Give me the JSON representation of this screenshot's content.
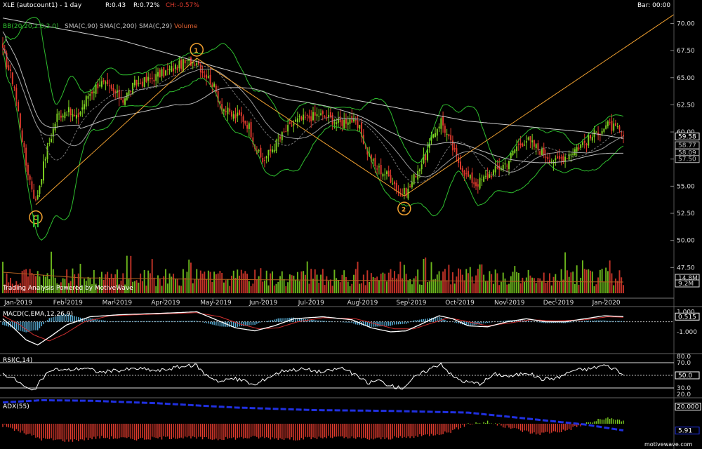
{
  "header": {
    "symbol": "XLE (autocount1) - 1 day",
    "range_label": "R:0.43",
    "range_pct": "R:0.72%",
    "change": "CH:-0.57%",
    "bar_label": "Bar: 00:00"
  },
  "indicators_line": {
    "bb": "BB(20,20,2.0,2.0)",
    "sma90": "SMA(C,90)",
    "sma200": "SMA(C,200)",
    "sma29": "SMA(C,29)",
    "volume": "Volume"
  },
  "watermark": "Trading Analysis Powered by MotiveWave",
  "footer_brand": "motivewave.com",
  "colors": {
    "up": "#7ed321",
    "down": "#e23b2e",
    "bb": "#2fbf2f",
    "sma": "#bdbdbd",
    "wave": "#f0a030",
    "macd": "#ffffff",
    "signal": "#d03030",
    "hist": "#5ab0d8",
    "adx": "#2030e0"
  },
  "chart_data": [
    {
      "type": "candlestick",
      "title": "XLE (autocount1) - 1 day",
      "x_labels": [
        "Jan-2019",
        "Feb-2019",
        "Mar-2019",
        "Apr-2019",
        "May-2019",
        "Jun-2019",
        "Jul-2019",
        "Aug-2019",
        "Sep-2019",
        "Oct-2019",
        "Nov-2019",
        "Dec-2019",
        "Jan-2020"
      ],
      "y_ticks": [
        "70.00",
        "67.50",
        "65.00",
        "62.50",
        "60.00",
        "57.50",
        "55.00",
        "52.50",
        "50.00",
        "47.50"
      ],
      "ylim": [
        45,
        71
      ],
      "price_tags": [
        {
          "label": "59.58",
          "value": 59.58,
          "color": "#ffffff"
        },
        {
          "label": "58.77",
          "value": 58.77,
          "color": "#bdbdbd"
        },
        {
          "label": "58.09",
          "value": 58.09,
          "color": "#bdbdbd"
        },
        {
          "label": "57.50",
          "value": 57.5,
          "color": "#bdbdbd"
        }
      ],
      "close_anchors": [
        [
          0,
          67.4
        ],
        [
          6,
          64.2
        ],
        [
          12,
          57.0
        ],
        [
          17,
          53.5
        ],
        [
          22,
          57.8
        ],
        [
          28,
          61.5
        ],
        [
          33,
          62.0
        ],
        [
          38,
          61.2
        ],
        [
          44,
          63.4
        ],
        [
          50,
          64.6
        ],
        [
          56,
          63.8
        ],
        [
          62,
          63.0
        ],
        [
          68,
          64.4
        ],
        [
          74,
          64.7
        ],
        [
          80,
          65.2
        ],
        [
          86,
          65.7
        ],
        [
          93,
          66.3
        ],
        [
          100,
          66.6
        ],
        [
          103,
          65.6
        ],
        [
          108,
          64.5
        ],
        [
          113,
          62.3
        ],
        [
          118,
          61.5
        ],
        [
          123,
          61.4
        ],
        [
          127,
          60.5
        ],
        [
          131,
          58.2
        ],
        [
          134,
          57.3
        ],
        [
          139,
          58.5
        ],
        [
          145,
          59.9
        ],
        [
          151,
          61.0
        ],
        [
          157,
          61.3
        ],
        [
          163,
          61.6
        ],
        [
          169,
          61.2
        ],
        [
          174,
          60.8
        ],
        [
          179,
          61.3
        ],
        [
          184,
          60.2
        ],
        [
          188,
          58.2
        ],
        [
          192,
          56.8
        ],
        [
          197,
          56.2
        ],
        [
          201,
          55.6
        ],
        [
          205,
          54.2
        ],
        [
          209,
          54.6
        ],
        [
          213,
          56.2
        ],
        [
          218,
          57.8
        ],
        [
          222,
          59.8
        ],
        [
          226,
          61.1
        ],
        [
          230,
          59.3
        ],
        [
          234,
          57.6
        ],
        [
          239,
          56.0
        ],
        [
          244,
          55.2
        ],
        [
          249,
          55.8
        ],
        [
          255,
          56.6
        ],
        [
          260,
          57.2
        ],
        [
          265,
          58.7
        ],
        [
          270,
          59.3
        ],
        [
          275,
          58.6
        ],
        [
          280,
          57.9
        ],
        [
          285,
          57.2
        ],
        [
          291,
          57.9
        ],
        [
          297,
          58.7
        ],
        [
          302,
          59.3
        ],
        [
          307,
          60.1
        ],
        [
          312,
          60.6
        ],
        [
          316,
          60.3
        ],
        [
          320,
          59.58
        ]
      ],
      "waves": [
        {
          "label": "C",
          "idx": 17,
          "value": 53.3
        },
        {
          "label": "1",
          "idx": 100,
          "value": 66.8
        },
        {
          "label": "2",
          "idx": 207,
          "value": 54.1
        }
      ],
      "wave_lines": [
        [
          17,
          53.3
        ],
        [
          100,
          66.8
        ],
        [
          207,
          54.1
        ],
        [
          360,
          72.5
        ]
      ],
      "volume_tags": [
        "14.8M",
        "9.2M"
      ]
    },
    {
      "type": "line",
      "title": "MACD(C,EMA,12,26,9)",
      "y_ticks": [
        "1.000",
        "-1.000"
      ],
      "value_tag": "0.515",
      "ylim": [
        -2.6,
        1.3
      ],
      "macd_anchors": [
        [
          0,
          0.3
        ],
        [
          5,
          -0.5
        ],
        [
          12,
          -1.8
        ],
        [
          18,
          -2.3
        ],
        [
          25,
          -1.4
        ],
        [
          33,
          -0.3
        ],
        [
          45,
          0.5
        ],
        [
          60,
          0.7
        ],
        [
          75,
          0.8
        ],
        [
          90,
          0.9
        ],
        [
          100,
          1.0
        ],
        [
          110,
          0.2
        ],
        [
          120,
          -0.6
        ],
        [
          130,
          -0.9
        ],
        [
          140,
          -0.4
        ],
        [
          150,
          0.3
        ],
        [
          165,
          0.5
        ],
        [
          180,
          0.2
        ],
        [
          190,
          -0.6
        ],
        [
          200,
          -1.0
        ],
        [
          208,
          -0.9
        ],
        [
          215,
          -0.3
        ],
        [
          225,
          0.6
        ],
        [
          232,
          0.3
        ],
        [
          240,
          -0.4
        ],
        [
          250,
          -0.5
        ],
        [
          260,
          0.0
        ],
        [
          270,
          0.3
        ],
        [
          280,
          0.0
        ],
        [
          290,
          0.0
        ],
        [
          300,
          0.3
        ],
        [
          310,
          0.6
        ],
        [
          320,
          0.515
        ]
      ],
      "signal_anchors": [
        [
          0,
          0.6
        ],
        [
          8,
          -0.2
        ],
        [
          16,
          -1.3
        ],
        [
          24,
          -1.9
        ],
        [
          32,
          -1.2
        ],
        [
          42,
          0.0
        ],
        [
          55,
          0.6
        ],
        [
          70,
          0.7
        ],
        [
          85,
          0.8
        ],
        [
          100,
          0.9
        ],
        [
          112,
          0.5
        ],
        [
          122,
          -0.2
        ],
        [
          132,
          -0.7
        ],
        [
          142,
          -0.6
        ],
        [
          152,
          0.0
        ],
        [
          165,
          0.4
        ],
        [
          182,
          0.3
        ],
        [
          192,
          -0.2
        ],
        [
          202,
          -0.7
        ],
        [
          212,
          -0.7
        ],
        [
          220,
          -0.2
        ],
        [
          230,
          0.4
        ],
        [
          240,
          0.0
        ],
        [
          250,
          -0.4
        ],
        [
          262,
          -0.1
        ],
        [
          272,
          0.2
        ],
        [
          285,
          0.1
        ],
        [
          300,
          0.2
        ],
        [
          312,
          0.5
        ],
        [
          320,
          0.45
        ]
      ]
    },
    {
      "type": "line",
      "title": "RSI(C,14)",
      "y_ticks": [
        "80.0",
        "70.0",
        "50.0",
        "30.0",
        "20.0"
      ],
      "value_tag": "50.0",
      "ylim": [
        20,
        80
      ],
      "levels": [
        70,
        50,
        30
      ],
      "rsi_anchors": [
        [
          0,
          52
        ],
        [
          4,
          48
        ],
        [
          8,
          40
        ],
        [
          12,
          30
        ],
        [
          16,
          25
        ],
        [
          20,
          44
        ],
        [
          26,
          60
        ],
        [
          33,
          58
        ],
        [
          42,
          62
        ],
        [
          50,
          55
        ],
        [
          60,
          58
        ],
        [
          70,
          61
        ],
        [
          80,
          57
        ],
        [
          90,
          63
        ],
        [
          100,
          66
        ],
        [
          104,
          52
        ],
        [
          112,
          40
        ],
        [
          118,
          45
        ],
        [
          124,
          42
        ],
        [
          130,
          34
        ],
        [
          136,
          46
        ],
        [
          145,
          58
        ],
        [
          155,
          60
        ],
        [
          165,
          55
        ],
        [
          175,
          62
        ],
        [
          182,
          50
        ],
        [
          188,
          38
        ],
        [
          194,
          42
        ],
        [
          200,
          33
        ],
        [
          206,
          30
        ],
        [
          212,
          46
        ],
        [
          220,
          60
        ],
        [
          226,
          69
        ],
        [
          232,
          48
        ],
        [
          238,
          40
        ],
        [
          246,
          37
        ],
        [
          254,
          52
        ],
        [
          262,
          48
        ],
        [
          270,
          55
        ],
        [
          278,
          44
        ],
        [
          286,
          46
        ],
        [
          294,
          58
        ],
        [
          302,
          60
        ],
        [
          310,
          66
        ],
        [
          316,
          60
        ],
        [
          320,
          50
        ]
      ]
    },
    {
      "type": "bar",
      "title": "ADX(55)",
      "y_ticks": [
        "20.000",
        "5.91"
      ],
      "value_tag": "5.91",
      "ylim": [
        0,
        24
      ],
      "adx_anchors": [
        [
          0,
          22.5
        ],
        [
          20,
          23.8
        ],
        [
          45,
          23.5
        ],
        [
          80,
          22.0
        ],
        [
          120,
          19.5
        ],
        [
          160,
          18.0
        ],
        [
          200,
          17.5
        ],
        [
          240,
          16.5
        ],
        [
          270,
          13.0
        ],
        [
          300,
          9.5
        ],
        [
          320,
          6.0
        ]
      ],
      "osc_anchors": [
        [
          0,
          -1
        ],
        [
          10,
          -5
        ],
        [
          20,
          -9
        ],
        [
          35,
          -10
        ],
        [
          50,
          -8
        ],
        [
          70,
          -9
        ],
        [
          90,
          -8
        ],
        [
          110,
          -9
        ],
        [
          130,
          -8
        ],
        [
          150,
          -9
        ],
        [
          170,
          -8
        ],
        [
          190,
          -9
        ],
        [
          210,
          -8
        ],
        [
          230,
          -5
        ],
        [
          240,
          0
        ],
        [
          250,
          1
        ],
        [
          260,
          -2
        ],
        [
          275,
          -6
        ],
        [
          290,
          -4
        ],
        [
          300,
          0
        ],
        [
          310,
          3
        ],
        [
          320,
          2
        ]
      ]
    }
  ]
}
